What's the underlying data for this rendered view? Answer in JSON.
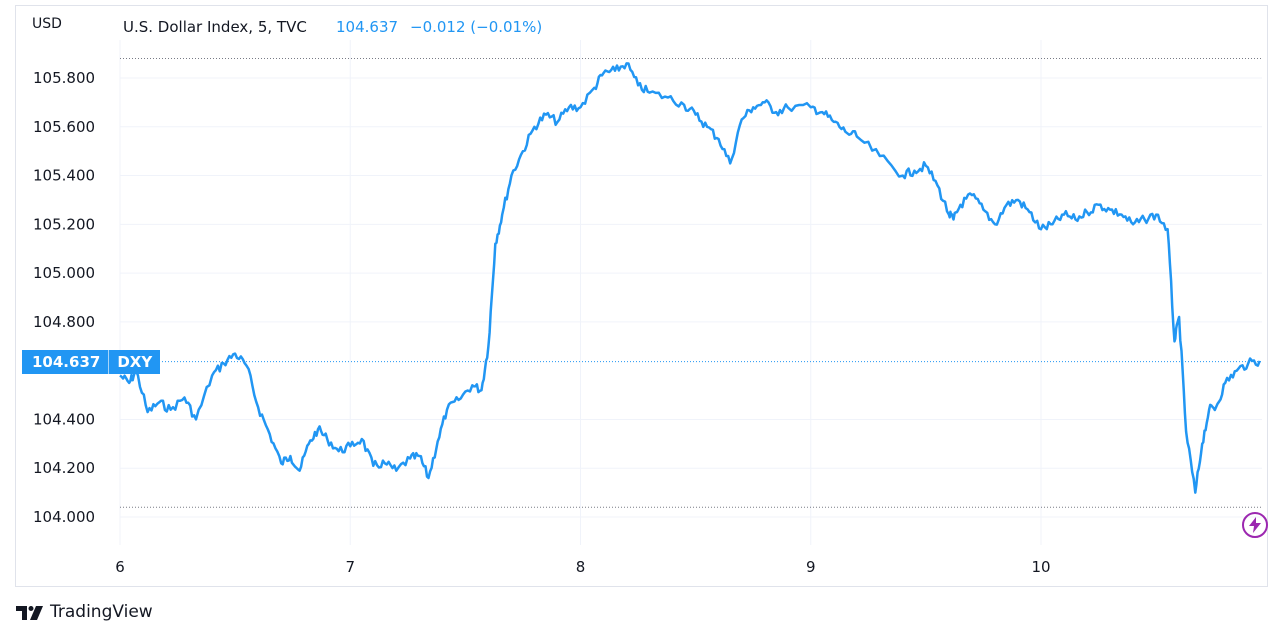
{
  "header": {
    "currency": "USD",
    "title": "U.S. Dollar Index, 5, TVC",
    "price": "104.637",
    "change": "−0.012 (−0.01%)"
  },
  "price_tag": {
    "value": "104.637",
    "symbol": "DXY"
  },
  "branding": {
    "name": "TradingView"
  },
  "colors": {
    "line": "#2196f3",
    "grid": "#f0f3fa",
    "accent": "#9c27b0"
  },
  "icons": {
    "alert": "lightning-icon",
    "logo": "tradingview-logo-icon"
  },
  "chart_data": {
    "type": "line",
    "title": "U.S. Dollar Index, 5, TVC",
    "xlabel": "",
    "ylabel": "USD",
    "ylim": [
      103.9,
      106.1
    ],
    "y_ticks": [
      "104.000",
      "104.200",
      "104.400",
      "104.800",
      "105.000",
      "105.200",
      "105.400",
      "105.600",
      "105.800"
    ],
    "x_ticks": [
      {
        "label": "6",
        "x": 6.0
      },
      {
        "label": "7",
        "x": 7.0
      },
      {
        "label": "8",
        "x": 8.0
      },
      {
        "label": "9",
        "x": 9.0
      },
      {
        "label": "10",
        "x": 10.0
      }
    ],
    "xlim": [
      6.0,
      10.95
    ],
    "reference_lines": [
      105.88,
      104.637,
      104.04
    ],
    "grid": true,
    "series": [
      {
        "x": [
          6.0,
          6.04,
          6.07,
          6.12,
          6.17,
          6.22,
          6.28,
          6.33,
          6.4,
          6.45,
          6.5,
          6.55,
          6.6,
          6.65,
          6.7,
          6.74,
          6.78,
          6.82,
          6.86,
          6.9,
          6.95,
          7.0,
          7.05,
          7.1,
          7.15,
          7.2,
          7.26,
          7.3,
          7.34,
          7.38,
          7.42,
          7.47,
          7.53,
          7.57,
          7.6,
          7.63,
          7.66,
          7.7,
          7.75,
          7.8,
          7.85,
          7.9,
          7.95,
          8.0,
          8.06,
          8.1,
          8.15,
          8.2,
          8.25,
          8.3,
          8.38,
          8.45,
          8.5,
          8.55,
          8.6,
          8.65,
          8.7,
          8.75,
          8.8,
          8.85,
          8.9,
          9.0,
          9.05,
          9.1,
          9.15,
          9.2,
          9.3,
          9.4,
          9.45,
          9.5,
          9.55,
          9.6,
          9.62,
          9.65,
          9.7,
          9.75,
          9.8,
          9.85,
          9.9,
          9.95,
          10.0,
          10.05,
          10.1,
          10.15,
          10.2,
          10.25,
          10.3,
          10.35,
          10.4,
          10.45,
          10.5,
          10.55,
          10.58,
          10.6,
          10.63,
          10.67,
          10.7,
          10.73,
          10.76,
          10.8,
          10.85,
          10.9,
          10.95
        ],
        "y": [
          104.58,
          104.55,
          104.6,
          104.43,
          104.47,
          104.44,
          104.49,
          104.4,
          104.58,
          104.63,
          104.67,
          104.62,
          104.45,
          104.34,
          104.22,
          104.25,
          104.19,
          104.3,
          104.36,
          104.32,
          104.27,
          104.29,
          104.32,
          104.21,
          104.22,
          104.19,
          104.24,
          104.25,
          104.16,
          104.31,
          104.44,
          104.48,
          104.54,
          104.52,
          104.7,
          105.12,
          105.24,
          105.4,
          105.5,
          105.6,
          105.65,
          105.62,
          105.68,
          105.68,
          105.76,
          105.82,
          105.83,
          105.86,
          105.77,
          105.74,
          105.72,
          105.69,
          105.65,
          105.6,
          105.55,
          105.45,
          105.63,
          105.68,
          105.7,
          105.66,
          105.68,
          105.68,
          105.66,
          105.62,
          105.58,
          105.56,
          105.48,
          105.4,
          105.42,
          105.44,
          105.36,
          105.24,
          105.22,
          105.28,
          105.32,
          105.26,
          105.2,
          105.28,
          105.3,
          105.25,
          105.18,
          105.2,
          105.24,
          105.22,
          105.25,
          105.28,
          105.26,
          105.24,
          105.2,
          105.22,
          105.24,
          105.18,
          104.72,
          104.82,
          104.35,
          104.1,
          104.3,
          104.44,
          104.45,
          104.55,
          104.6,
          104.63,
          104.64
        ]
      }
    ]
  }
}
